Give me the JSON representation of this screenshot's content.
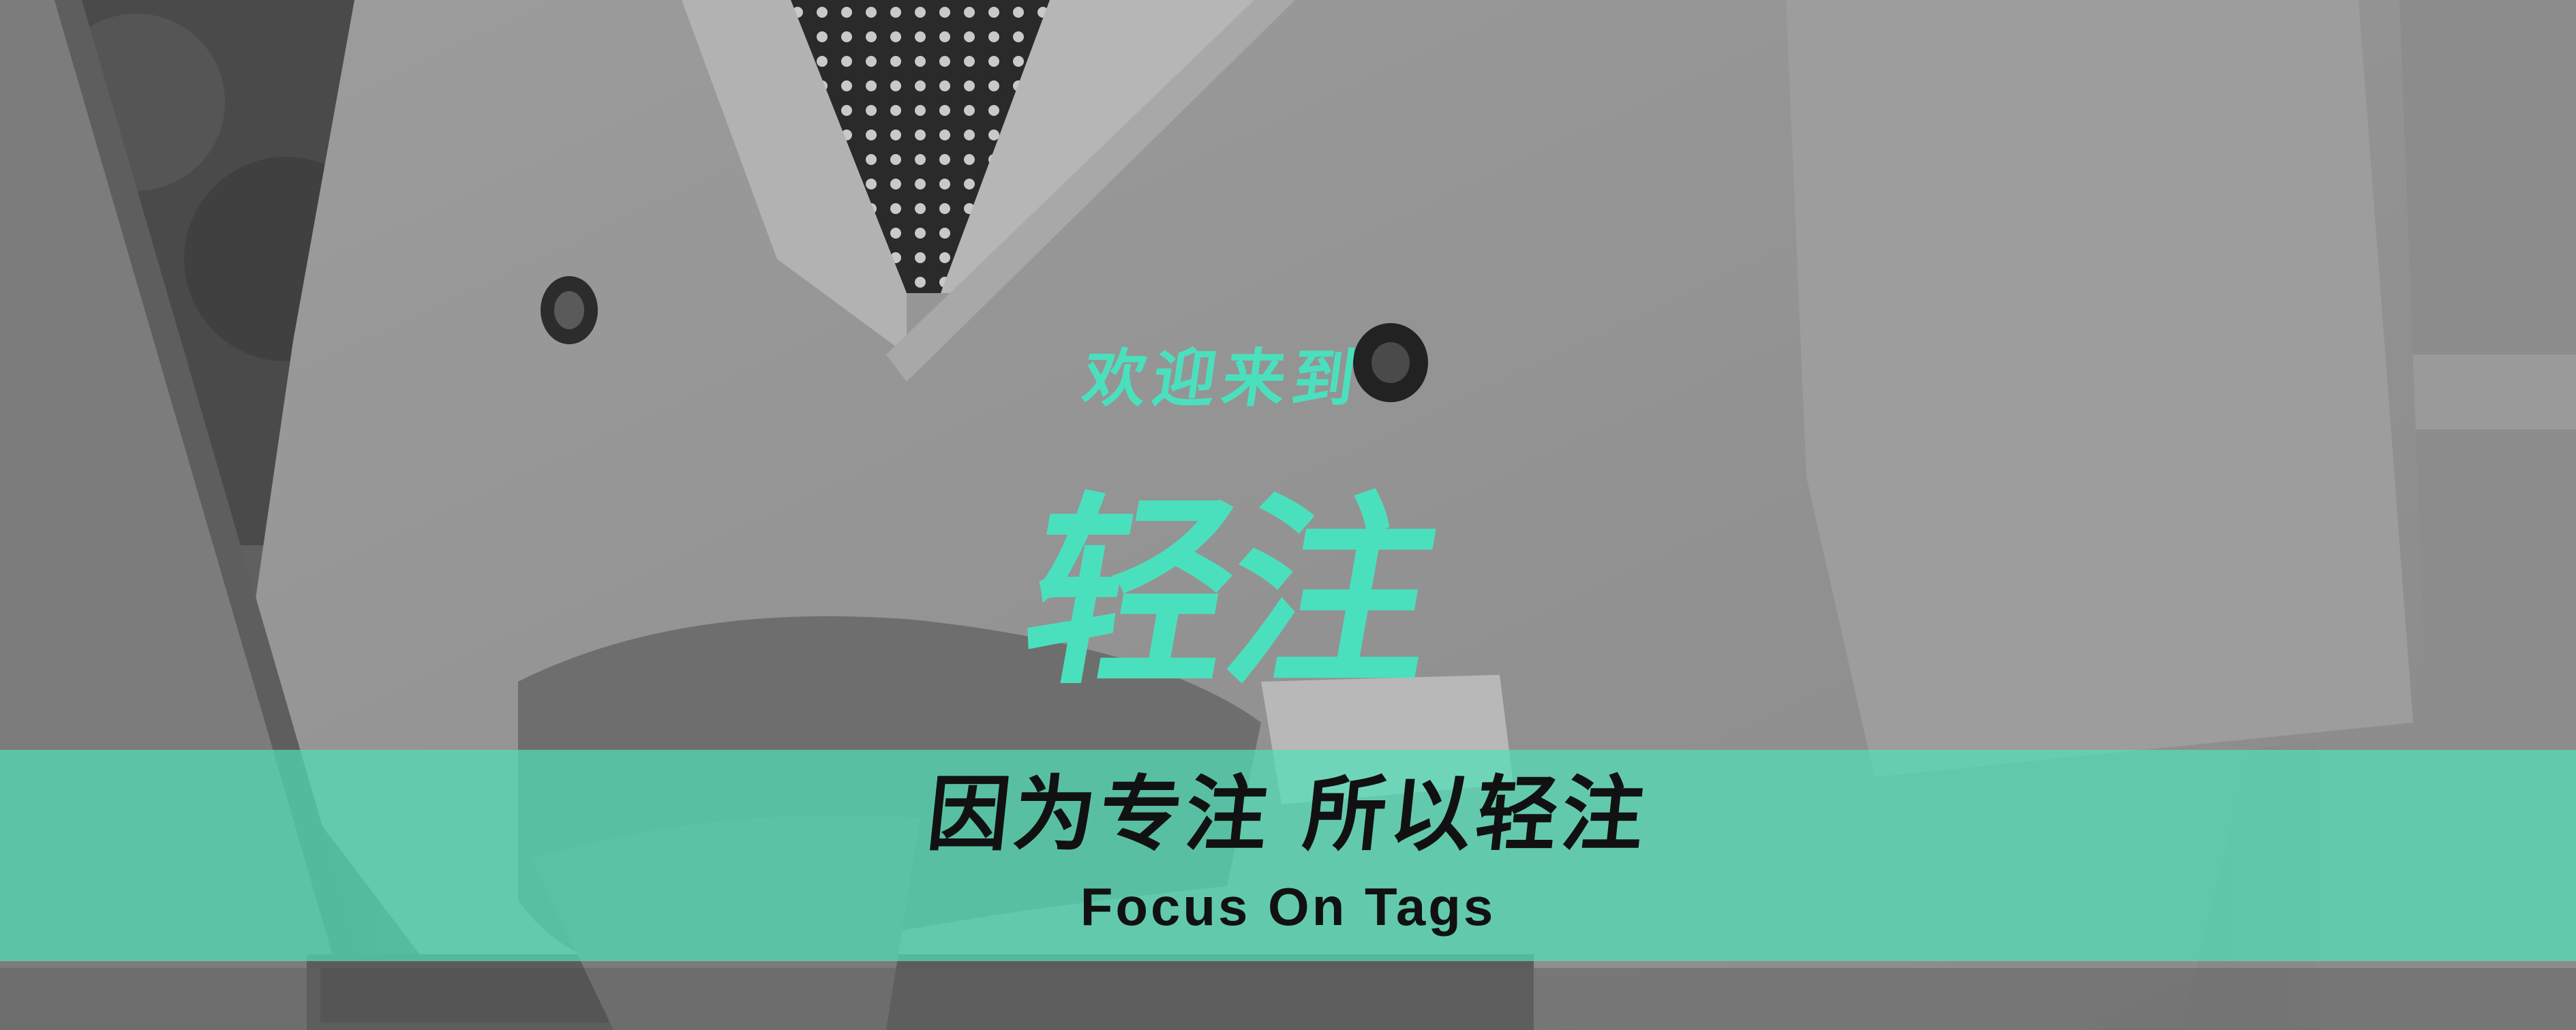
{
  "banner": {
    "welcome_text": "欢迎来到",
    "brand_name": "轻注",
    "slogan": "因为专注 所以轻注",
    "tagline": "Focus On Tags"
  },
  "colors": {
    "accent": "#4be0bd",
    "band": "#50e1b9",
    "text_dark": "#111111",
    "photo_base": "#6a6a6a"
  }
}
